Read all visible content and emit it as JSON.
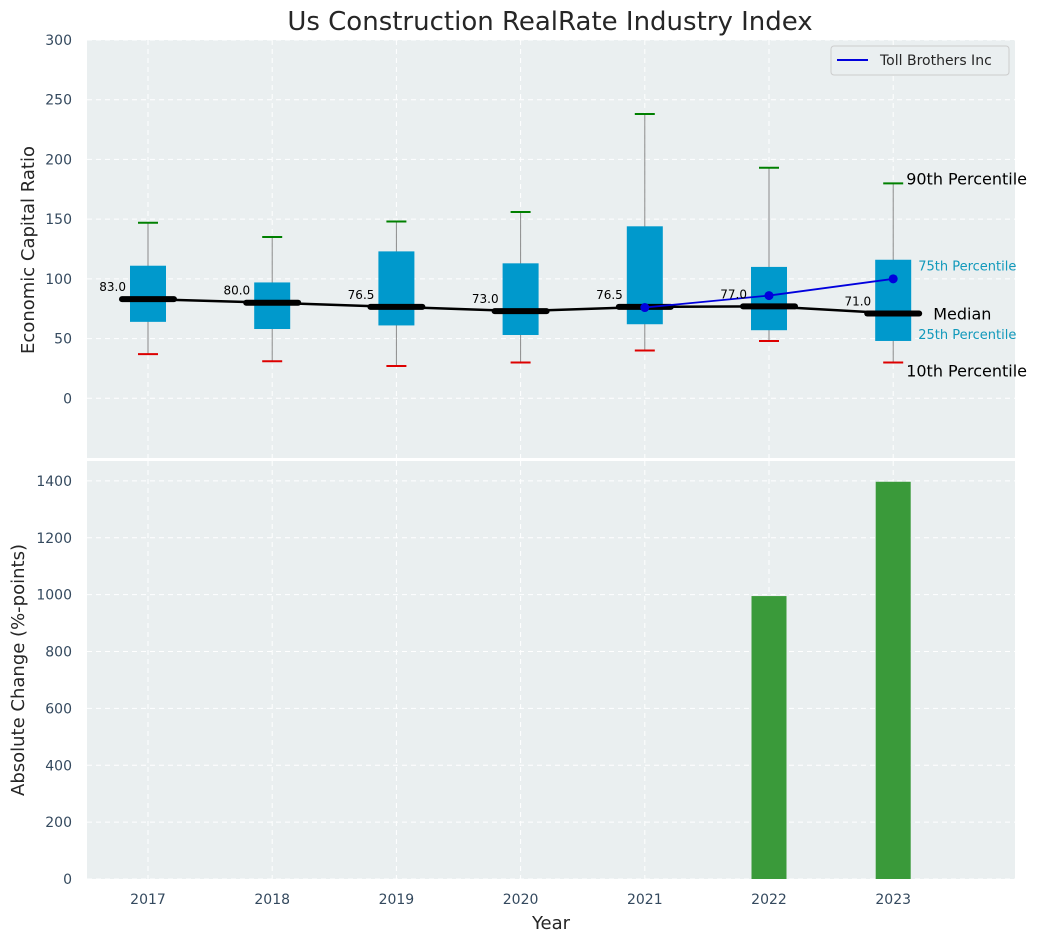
{
  "chart_data": [
    {
      "type": "box",
      "title": "Us Construction RealRate Industry Index",
      "ylabel": "Economic Capital Ratio",
      "ylim": [
        -50,
        300
      ],
      "yticks": [
        0,
        50,
        100,
        150,
        200,
        250,
        300
      ],
      "grid": true,
      "legend": {
        "position": "top-right",
        "entries": [
          "Toll Brothers Inc"
        ]
      },
      "categories": [
        "2017",
        "2018",
        "2019",
        "2020",
        "2021",
        "2022",
        "2023"
      ],
      "boxes": [
        {
          "p10": 37,
          "p25": 64,
          "median": 83.0,
          "p75": 111,
          "p90": 147,
          "median_label": "83.0"
        },
        {
          "p10": 31,
          "p25": 58,
          "median": 80.0,
          "p75": 97,
          "p90": 135,
          "median_label": "80.0"
        },
        {
          "p10": 27,
          "p25": 61,
          "median": 76.5,
          "p75": 123,
          "p90": 148,
          "median_label": "76.5"
        },
        {
          "p10": 30,
          "p25": 53,
          "median": 73.0,
          "p75": 113,
          "p90": 156,
          "median_label": "73.0"
        },
        {
          "p10": 40,
          "p25": 62,
          "median": 76.5,
          "p75": 144,
          "p90": 238,
          "median_label": "76.5"
        },
        {
          "p10": 48,
          "p25": 57,
          "median": 77.0,
          "p75": 110,
          "p90": 193,
          "median_label": "77.0"
        },
        {
          "p10": 30,
          "p25": 48,
          "median": 71.0,
          "p75": 116,
          "p90": 180,
          "median_label": "71.0"
        }
      ],
      "series": [
        {
          "name": "Toll Brothers Inc",
          "x": [
            "2021",
            "2022",
            "2023"
          ],
          "values": [
            76,
            86,
            100
          ]
        }
      ],
      "annotations": {
        "p90": "90th Percentile",
        "p75": "75th Percentile",
        "median": "Median",
        "p25": "25th Percentile",
        "p10": "10th Percentile"
      }
    },
    {
      "type": "bar",
      "ylabel": "Absolute Change (%-points)",
      "xlabel": "Year",
      "ylim": [
        0,
        1470
      ],
      "yticks": [
        0,
        200,
        400,
        600,
        800,
        1000,
        1200,
        1400
      ],
      "grid": true,
      "categories": [
        "2017",
        "2018",
        "2019",
        "2020",
        "2021",
        "2022",
        "2023"
      ],
      "values": [
        0,
        0,
        0,
        0,
        0,
        995,
        1397
      ]
    }
  ],
  "colors": {
    "background": "#eaeff0",
    "box": "#0099cc",
    "median_line": "#000000",
    "series_line": "#0000dd",
    "p90_cap": "#008000",
    "p10_cap": "#dd0000",
    "whisker": "#8a8a8a",
    "bar": "#3a9a3a",
    "p75_label": "#1199bb",
    "p25_label": "#1199bb"
  }
}
